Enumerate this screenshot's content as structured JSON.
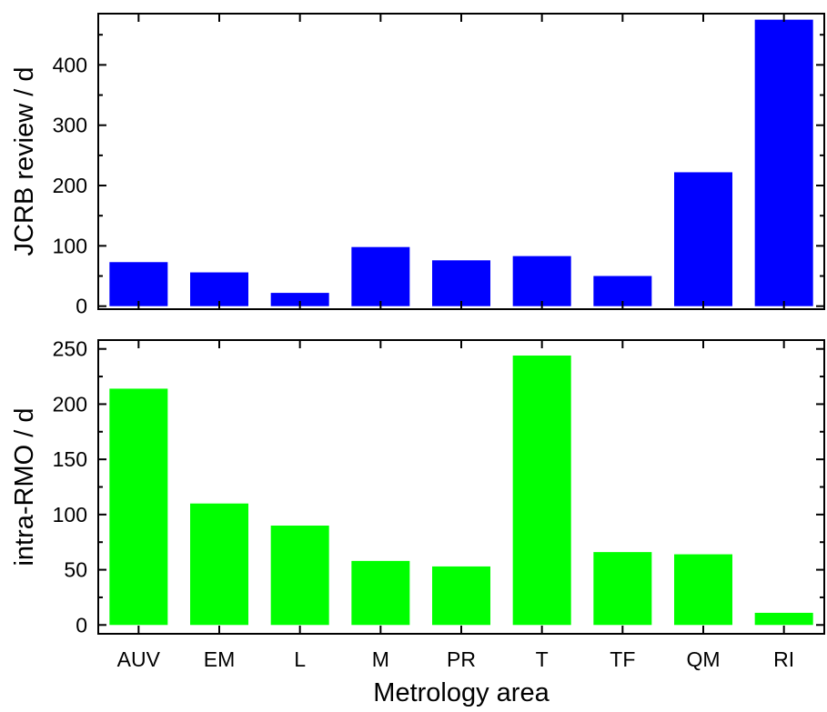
{
  "chart_data": [
    {
      "type": "bar",
      "panel": "top",
      "categories": [
        "AUV",
        "EM",
        "L",
        "M",
        "PR",
        "T",
        "TF",
        "QM",
        "RI"
      ],
      "values": [
        73,
        56,
        22,
        98,
        76,
        83,
        50,
        222,
        475
      ],
      "ylabel": "JCRB review / d",
      "ylim": [
        -5,
        485
      ],
      "yticks": [
        0,
        100,
        200,
        300,
        400
      ],
      "color": "#0000ff",
      "grid": false
    },
    {
      "type": "bar",
      "panel": "bottom",
      "categories": [
        "AUV",
        "EM",
        "L",
        "M",
        "PR",
        "T",
        "TF",
        "QM",
        "RI"
      ],
      "values": [
        214,
        110,
        90,
        58,
        53,
        244,
        66,
        64,
        11
      ],
      "ylabel": "intra-RMO / d",
      "xlabel": "Metrology area",
      "ylim": [
        -8,
        258
      ],
      "yticks": [
        0,
        50,
        100,
        150,
        200,
        250
      ],
      "color": "#00ff00",
      "grid": false
    }
  ]
}
